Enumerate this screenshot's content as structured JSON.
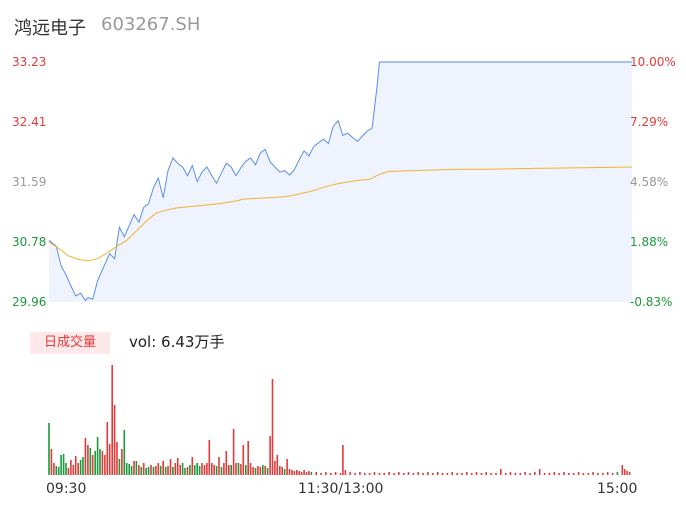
{
  "header": {
    "name": "鸿远电子",
    "code": "603267.SH"
  },
  "colors": {
    "up": "#e23a3a",
    "down": "#1a9a3a",
    "neutral": "#999999",
    "price_line": "#5b8fe8",
    "avg_line": "#f2b12f",
    "area_fill": "#eef3fd",
    "vol_badge_bg": "#fde9e9"
  },
  "volume_panel": {
    "badge": "日成交量",
    "text": "vol: 6.43万手"
  },
  "chart_data": [
    {
      "type": "line",
      "title": "",
      "x_ticks": [
        "09:30",
        "11:30/13:00",
        "15:00"
      ],
      "y_left_ticks": [
        "33.23",
        "32.41",
        "31.59",
        "30.78",
        "29.96"
      ],
      "y_right_ticks": [
        "10.00%",
        "7.29%",
        "4.58%",
        "1.88%",
        "-0.83%"
      ],
      "y_left_tick_colors": [
        "up",
        "up",
        "neutral",
        "down",
        "down"
      ],
      "y_right_tick_colors": [
        "up",
        "up",
        "neutral",
        "down",
        "down"
      ],
      "ylim": [
        29.96,
        33.23
      ],
      "minutes_total": 240,
      "series": [
        {
          "key": "price",
          "points": [
            [
              0,
              30.8
            ],
            [
              3,
              30.72
            ],
            [
              5,
              30.45
            ],
            [
              7,
              30.33
            ],
            [
              9,
              30.18
            ],
            [
              11,
              30.04
            ],
            [
              13,
              30.08
            ],
            [
              15,
              29.98
            ],
            [
              16,
              30.02
            ],
            [
              18,
              30.0
            ],
            [
              20,
              30.25
            ],
            [
              22,
              30.4
            ],
            [
              25,
              30.62
            ],
            [
              27,
              30.55
            ],
            [
              29,
              30.98
            ],
            [
              31,
              30.85
            ],
            [
              33,
              31.0
            ],
            [
              35,
              31.15
            ],
            [
              37,
              31.05
            ],
            [
              39,
              31.25
            ],
            [
              41,
              31.3
            ],
            [
              43,
              31.52
            ],
            [
              45,
              31.65
            ],
            [
              47,
              31.38
            ],
            [
              49,
              31.75
            ],
            [
              51,
              31.92
            ],
            [
              53,
              31.85
            ],
            [
              55,
              31.8
            ],
            [
              57,
              31.68
            ],
            [
              59,
              31.82
            ],
            [
              61,
              31.6
            ],
            [
              63,
              31.73
            ],
            [
              65,
              31.8
            ],
            [
              67,
              31.68
            ],
            [
              69,
              31.58
            ],
            [
              71,
              31.72
            ],
            [
              73,
              31.85
            ],
            [
              75,
              31.8
            ],
            [
              77,
              31.68
            ],
            [
              79,
              31.79
            ],
            [
              81,
              31.88
            ],
            [
              83,
              31.92
            ],
            [
              85,
              31.83
            ],
            [
              87,
              31.99
            ],
            [
              89,
              32.04
            ],
            [
              91,
              31.87
            ],
            [
              93,
              31.8
            ],
            [
              95,
              31.73
            ],
            [
              97,
              31.75
            ],
            [
              99,
              31.69
            ],
            [
              101,
              31.76
            ],
            [
              103,
              31.9
            ],
            [
              105,
              32.02
            ],
            [
              107,
              31.95
            ],
            [
              109,
              32.08
            ],
            [
              111,
              32.13
            ],
            [
              113,
              32.18
            ],
            [
              115,
              32.12
            ],
            [
              117,
              32.35
            ],
            [
              119,
              32.43
            ],
            [
              121,
              32.23
            ],
            [
              123,
              32.26
            ],
            [
              125,
              32.2
            ],
            [
              127,
              32.15
            ],
            [
              129,
              32.22
            ],
            [
              131,
              32.29
            ],
            [
              133,
              32.33
            ],
            [
              135,
              32.88
            ],
            [
              136,
              33.23
            ],
            [
              240,
              33.23
            ]
          ]
        },
        {
          "key": "average",
          "points": [
            [
              0,
              30.78
            ],
            [
              4,
              30.69
            ],
            [
              8,
              30.59
            ],
            [
              12,
              30.54
            ],
            [
              16,
              30.52
            ],
            [
              20,
              30.55
            ],
            [
              24,
              30.63
            ],
            [
              28,
              30.72
            ],
            [
              32,
              30.8
            ],
            [
              36,
              30.93
            ],
            [
              40,
              31.06
            ],
            [
              44,
              31.17
            ],
            [
              48,
              31.21
            ],
            [
              52,
              31.24
            ],
            [
              58,
              31.26
            ],
            [
              64,
              31.28
            ],
            [
              70,
              31.3
            ],
            [
              76,
              31.33
            ],
            [
              80,
              31.36
            ],
            [
              84,
              31.37
            ],
            [
              90,
              31.38
            ],
            [
              96,
              31.39
            ],
            [
              100,
              31.41
            ],
            [
              104,
              31.44
            ],
            [
              108,
              31.47
            ],
            [
              112,
              31.51
            ],
            [
              116,
              31.55
            ],
            [
              120,
              31.58
            ],
            [
              124,
              31.6
            ],
            [
              128,
              31.62
            ],
            [
              132,
              31.63
            ],
            [
              136,
              31.7
            ],
            [
              140,
              31.74
            ],
            [
              150,
              31.75
            ],
            [
              160,
              31.76
            ],
            [
              170,
              31.77
            ],
            [
              180,
              31.77
            ],
            [
              200,
              31.78
            ],
            [
              220,
              31.79
            ],
            [
              240,
              31.8
            ]
          ]
        }
      ]
    },
    {
      "type": "bar",
      "title": "",
      "ylim": [
        0,
        110
      ],
      "bars": [
        [
          0,
          52,
          "d"
        ],
        [
          1,
          26,
          "u"
        ],
        [
          2,
          12,
          "u"
        ],
        [
          3,
          9,
          "d"
        ],
        [
          4,
          8,
          "d"
        ],
        [
          5,
          20,
          "d"
        ],
        [
          6,
          21,
          "d"
        ],
        [
          7,
          12,
          "d"
        ],
        [
          8,
          7,
          "u"
        ],
        [
          9,
          15,
          "u"
        ],
        [
          10,
          10,
          "u"
        ],
        [
          11,
          19,
          "u"
        ],
        [
          12,
          12,
          "u"
        ],
        [
          13,
          15,
          "d"
        ],
        [
          14,
          18,
          "d"
        ],
        [
          15,
          37,
          "u"
        ],
        [
          16,
          30,
          "u"
        ],
        [
          17,
          27,
          "d"
        ],
        [
          18,
          20,
          "u"
        ],
        [
          19,
          24,
          "d"
        ],
        [
          20,
          38,
          "d"
        ],
        [
          21,
          26,
          "d"
        ],
        [
          22,
          24,
          "u"
        ],
        [
          23,
          20,
          "u"
        ],
        [
          24,
          53,
          "u"
        ],
        [
          25,
          31,
          "u"
        ],
        [
          26,
          110,
          "u"
        ],
        [
          27,
          70,
          "u"
        ],
        [
          28,
          33,
          "u"
        ],
        [
          29,
          16,
          "d"
        ],
        [
          30,
          26,
          "u"
        ],
        [
          31,
          45,
          "d"
        ],
        [
          32,
          12,
          "d"
        ],
        [
          33,
          11,
          "d"
        ],
        [
          34,
          9,
          "d"
        ],
        [
          35,
          14,
          "u"
        ],
        [
          36,
          14,
          "d"
        ],
        [
          37,
          10,
          "u"
        ],
        [
          38,
          8,
          "d"
        ],
        [
          39,
          12,
          "u"
        ],
        [
          40,
          7,
          "d"
        ],
        [
          41,
          8,
          "d"
        ],
        [
          42,
          10,
          "u"
        ],
        [
          43,
          8,
          "d"
        ],
        [
          44,
          9,
          "u"
        ],
        [
          45,
          12,
          "u"
        ],
        [
          46,
          9,
          "d"
        ],
        [
          47,
          14,
          "u"
        ],
        [
          48,
          8,
          "d"
        ],
        [
          49,
          9,
          "u"
        ],
        [
          50,
          16,
          "u"
        ],
        [
          51,
          8,
          "d"
        ],
        [
          52,
          12,
          "u"
        ],
        [
          53,
          17,
          "u"
        ],
        [
          54,
          10,
          "u"
        ],
        [
          55,
          12,
          "d"
        ],
        [
          56,
          7,
          "d"
        ],
        [
          57,
          8,
          "u"
        ],
        [
          58,
          10,
          "d"
        ],
        [
          59,
          18,
          "u"
        ],
        [
          60,
          10,
          "d"
        ],
        [
          61,
          12,
          "d"
        ],
        [
          62,
          9,
          "d"
        ],
        [
          63,
          12,
          "u"
        ],
        [
          64,
          10,
          "u"
        ],
        [
          65,
          12,
          "u"
        ],
        [
          66,
          35,
          "u"
        ],
        [
          67,
          12,
          "u"
        ],
        [
          68,
          10,
          "u"
        ],
        [
          69,
          9,
          "d"
        ],
        [
          70,
          18,
          "u"
        ],
        [
          71,
          8,
          "d"
        ],
        [
          72,
          12,
          "u"
        ],
        [
          73,
          24,
          "u"
        ],
        [
          74,
          10,
          "u"
        ],
        [
          75,
          10,
          "d"
        ],
        [
          76,
          46,
          "u"
        ],
        [
          77,
          12,
          "u"
        ],
        [
          78,
          12,
          "d"
        ],
        [
          79,
          11,
          "u"
        ],
        [
          80,
          30,
          "u"
        ],
        [
          81,
          10,
          "d"
        ],
        [
          82,
          34,
          "u"
        ],
        [
          83,
          12,
          "u"
        ],
        [
          84,
          8,
          "u"
        ],
        [
          85,
          7,
          "d"
        ],
        [
          86,
          9,
          "u"
        ],
        [
          87,
          8,
          "u"
        ],
        [
          88,
          10,
          "d"
        ],
        [
          89,
          9,
          "u"
        ],
        [
          90,
          7,
          "d"
        ],
        [
          91,
          39,
          "u"
        ],
        [
          92,
          96,
          "u"
        ],
        [
          93,
          14,
          "u"
        ],
        [
          94,
          20,
          "u"
        ],
        [
          95,
          9,
          "u"
        ],
        [
          96,
          8,
          "u"
        ],
        [
          97,
          6,
          "d"
        ],
        [
          98,
          16,
          "u"
        ],
        [
          99,
          6,
          "u"
        ],
        [
          100,
          5,
          "u"
        ],
        [
          101,
          4,
          "u"
        ],
        [
          102,
          5,
          "u"
        ],
        [
          103,
          4,
          "u"
        ],
        [
          104,
          3,
          "u"
        ],
        [
          105,
          5,
          "u"
        ],
        [
          106,
          3,
          "u"
        ],
        [
          107,
          4,
          "u"
        ],
        [
          108,
          3,
          "d"
        ],
        [
          110,
          3,
          "u"
        ],
        [
          112,
          2,
          "u"
        ],
        [
          114,
          3,
          "u"
        ],
        [
          116,
          2,
          "u"
        ],
        [
          118,
          3,
          "u"
        ],
        [
          120,
          2,
          "u"
        ],
        [
          121,
          30,
          "u"
        ],
        [
          122,
          5,
          "u"
        ],
        [
          124,
          3,
          "u"
        ],
        [
          126,
          2,
          "u"
        ],
        [
          128,
          3,
          "u"
        ],
        [
          130,
          2,
          "u"
        ],
        [
          132,
          2,
          "u"
        ],
        [
          134,
          3,
          "u"
        ],
        [
          136,
          2,
          "u"
        ],
        [
          138,
          2,
          "u"
        ],
        [
          140,
          3,
          "u"
        ],
        [
          142,
          2,
          "u"
        ],
        [
          144,
          3,
          "u"
        ],
        [
          146,
          2,
          "u"
        ],
        [
          148,
          3,
          "u"
        ],
        [
          150,
          2,
          "u"
        ],
        [
          152,
          3,
          "u"
        ],
        [
          154,
          2,
          "u"
        ],
        [
          156,
          3,
          "u"
        ],
        [
          158,
          2,
          "u"
        ],
        [
          160,
          3,
          "u"
        ],
        [
          162,
          2,
          "u"
        ],
        [
          164,
          2,
          "u"
        ],
        [
          166,
          3,
          "u"
        ],
        [
          168,
          2,
          "u"
        ],
        [
          170,
          2,
          "u"
        ],
        [
          172,
          3,
          "u"
        ],
        [
          174,
          2,
          "u"
        ],
        [
          176,
          3,
          "u"
        ],
        [
          178,
          2,
          "u"
        ],
        [
          180,
          3,
          "u"
        ],
        [
          182,
          2,
          "u"
        ],
        [
          184,
          2,
          "u"
        ],
        [
          186,
          6,
          "u"
        ],
        [
          188,
          2,
          "u"
        ],
        [
          190,
          3,
          "u"
        ],
        [
          192,
          2,
          "u"
        ],
        [
          194,
          2,
          "u"
        ],
        [
          196,
          3,
          "u"
        ],
        [
          198,
          2,
          "u"
        ],
        [
          200,
          3,
          "u"
        ],
        [
          202,
          6,
          "u"
        ],
        [
          204,
          2,
          "u"
        ],
        [
          206,
          2,
          "u"
        ],
        [
          208,
          3,
          "u"
        ],
        [
          210,
          2,
          "u"
        ],
        [
          212,
          3,
          "u"
        ],
        [
          214,
          2,
          "u"
        ],
        [
          216,
          2,
          "u"
        ],
        [
          218,
          3,
          "u"
        ],
        [
          220,
          2,
          "u"
        ],
        [
          222,
          2,
          "u"
        ],
        [
          224,
          3,
          "u"
        ],
        [
          226,
          2,
          "u"
        ],
        [
          228,
          2,
          "u"
        ],
        [
          230,
          3,
          "u"
        ],
        [
          232,
          2,
          "u"
        ],
        [
          234,
          3,
          "d"
        ],
        [
          236,
          10,
          "u"
        ],
        [
          237,
          6,
          "u"
        ],
        [
          238,
          4,
          "u"
        ],
        [
          239,
          3,
          "u"
        ]
      ]
    }
  ]
}
